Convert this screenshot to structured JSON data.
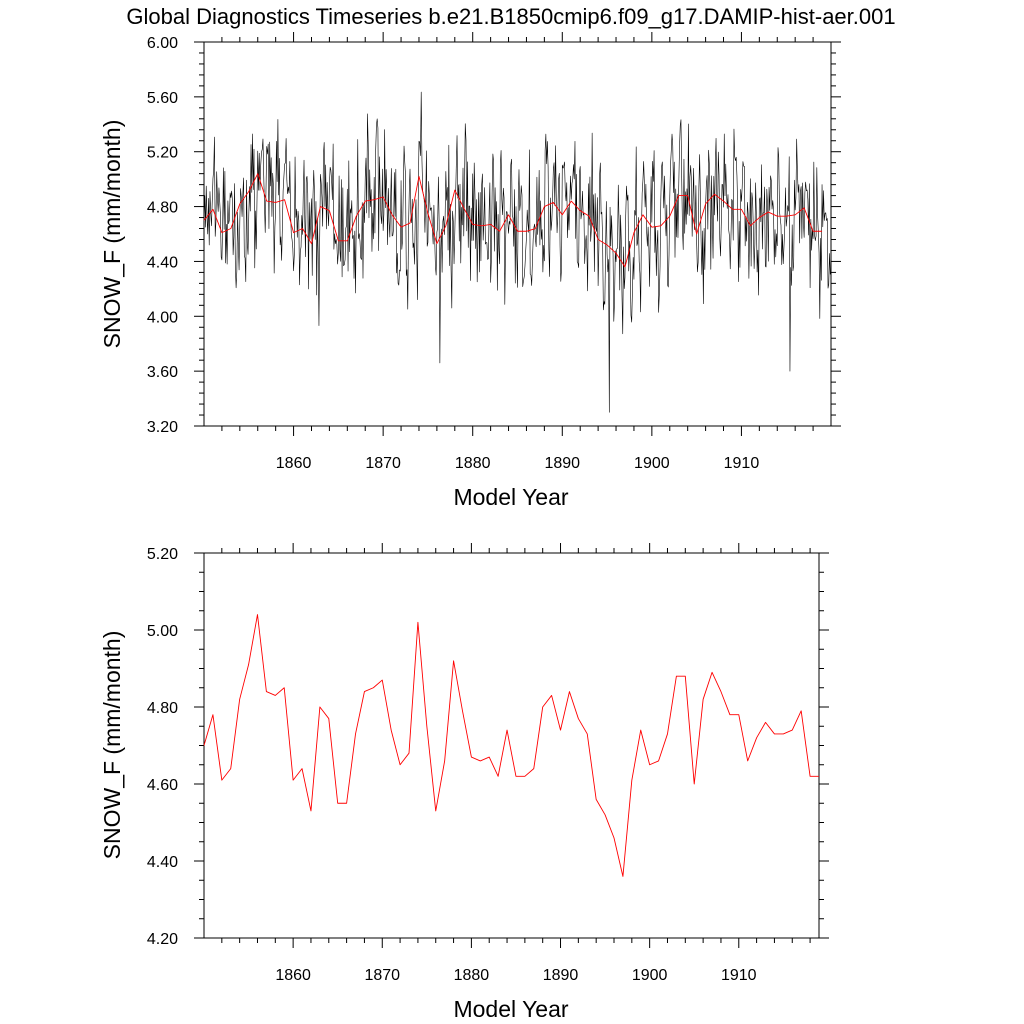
{
  "title": "Global Diagnostics Timeseries b.e21.B1850cmip6.f09_g17.DAMIP-hist-aer.001",
  "colors": {
    "monthly_line": "#000000",
    "annual_line": "#ff0000"
  },
  "chart_data": [
    {
      "type": "line",
      "xlabel": "Model Year",
      "ylabel": "SNOW_F (mm/month)",
      "xlim": [
        1850,
        1920
      ],
      "ylim": [
        3.2,
        6.0
      ],
      "x_ticks": [
        "1860",
        "1870",
        "1880",
        "1890",
        "1900",
        "1910"
      ],
      "y_ticks": [
        "3.20",
        "3.60",
        "4.00",
        "4.40",
        "4.80",
        "5.20",
        "5.60",
        "6.00"
      ],
      "grid": false,
      "series": [
        {
          "role": "monthly",
          "color": "#000000",
          "monthly_summary": "840 monthly values, roughly 3.7-5.7, one minimum near 3.3 around 1895",
          "x": [
            1850.0,
            1850.083,
            1850.167,
            1850.25,
            1850.333,
            1850.417,
            1850.5,
            1850.583,
            1850.667,
            1850.75,
            1850.833,
            1850.917
          ],
          "values": [
            4.7,
            4.88,
            4.65,
            4.95,
            4.72,
            4.6,
            4.86,
            4.52,
            4.91,
            4.75,
            4.66,
            4.83
          ]
        },
        {
          "role": "annual",
          "color": "#ff0000",
          "x": [
            1850.0,
            1851.0,
            1852.0,
            1853.0,
            1854.0,
            1855.0,
            1856.0,
            1857.0,
            1858.0,
            1859.0,
            1860.0,
            1861.0,
            1862.0,
            1863.0,
            1864.0,
            1865.0,
            1866.0,
            1867.0,
            1868.0,
            1869.0,
            1870.0,
            1871.0,
            1872.0,
            1873.0,
            1874.0,
            1875.0,
            1876.0,
            1877.0,
            1878.0,
            1879.0,
            1880.0,
            1881.0,
            1882.0,
            1883.0,
            1884.0,
            1885.0,
            1886.0,
            1887.0,
            1888.0,
            1889.0,
            1890.0,
            1891.0,
            1892.0,
            1893.0,
            1894.0,
            1895.0,
            1896.0,
            1897.0,
            1898.0,
            1899.0,
            1900.0,
            1901.0,
            1902.0,
            1903.0,
            1904.0,
            1905.0,
            1906.0,
            1907.0,
            1908.0,
            1909.0,
            1910.0,
            1911.0,
            1912.0,
            1913.0,
            1914.0,
            1915.0,
            1916.0,
            1917.0,
            1918.0,
            1919.0
          ],
          "values": [
            4.7,
            4.78,
            4.61,
            4.64,
            4.82,
            4.91,
            5.04,
            4.84,
            4.83,
            4.85,
            4.61,
            4.64,
            4.53,
            4.8,
            4.77,
            4.55,
            4.55,
            4.73,
            4.84,
            4.85,
            4.87,
            4.74,
            4.65,
            4.68,
            5.02,
            4.75,
            4.53,
            4.66,
            4.92,
            4.79,
            4.67,
            4.66,
            4.67,
            4.62,
            4.74,
            4.62,
            4.62,
            4.64,
            4.8,
            4.83,
            4.74,
            4.84,
            4.77,
            4.73,
            4.56,
            4.52,
            4.46,
            4.36,
            4.61,
            4.74,
            4.65,
            4.66,
            4.73,
            4.88,
            4.88,
            4.6,
            4.82,
            4.89,
            4.84,
            4.78,
            4.78,
            4.66,
            4.72,
            4.76,
            4.73,
            4.73,
            4.74,
            4.79,
            4.62,
            4.62
          ]
        }
      ]
    },
    {
      "type": "line",
      "xlabel": "Model Year",
      "ylabel": "SNOW_F (mm/month)",
      "xlim": [
        1850,
        1919
      ],
      "ylim": [
        4.2,
        5.2
      ],
      "x_ticks": [
        "1860",
        "1870",
        "1880",
        "1890",
        "1900",
        "1910"
      ],
      "y_ticks": [
        "4.20",
        "4.40",
        "4.60",
        "4.80",
        "5.00",
        "5.20"
      ],
      "grid": false,
      "series": [
        {
          "role": "annual",
          "color": "#ff0000",
          "x": [
            1850.0,
            1851.0,
            1852.0,
            1853.0,
            1854.0,
            1855.0,
            1856.0,
            1857.0,
            1858.0,
            1859.0,
            1860.0,
            1861.0,
            1862.0,
            1863.0,
            1864.0,
            1865.0,
            1866.0,
            1867.0,
            1868.0,
            1869.0,
            1870.0,
            1871.0,
            1872.0,
            1873.0,
            1874.0,
            1875.0,
            1876.0,
            1877.0,
            1878.0,
            1879.0,
            1880.0,
            1881.0,
            1882.0,
            1883.0,
            1884.0,
            1885.0,
            1886.0,
            1887.0,
            1888.0,
            1889.0,
            1890.0,
            1891.0,
            1892.0,
            1893.0,
            1894.0,
            1895.0,
            1896.0,
            1897.0,
            1898.0,
            1899.0,
            1900.0,
            1901.0,
            1902.0,
            1903.0,
            1904.0,
            1905.0,
            1906.0,
            1907.0,
            1908.0,
            1909.0,
            1910.0,
            1911.0,
            1912.0,
            1913.0,
            1914.0,
            1915.0,
            1916.0,
            1917.0,
            1918.0,
            1919.0
          ],
          "values": [
            4.7,
            4.78,
            4.61,
            4.64,
            4.82,
            4.91,
            5.04,
            4.84,
            4.83,
            4.85,
            4.61,
            4.64,
            4.53,
            4.8,
            4.77,
            4.55,
            4.55,
            4.73,
            4.84,
            4.85,
            4.87,
            4.74,
            4.65,
            4.68,
            5.02,
            4.75,
            4.53,
            4.66,
            4.92,
            4.79,
            4.67,
            4.66,
            4.67,
            4.62,
            4.74,
            4.62,
            4.62,
            4.64,
            4.8,
            4.83,
            4.74,
            4.84,
            4.77,
            4.73,
            4.56,
            4.52,
            4.46,
            4.36,
            4.61,
            4.74,
            4.65,
            4.66,
            4.73,
            4.88,
            4.88,
            4.6,
            4.82,
            4.89,
            4.84,
            4.78,
            4.78,
            4.66,
            4.72,
            4.76,
            4.73,
            4.73,
            4.74,
            4.79,
            4.62,
            4.62
          ]
        }
      ]
    }
  ]
}
